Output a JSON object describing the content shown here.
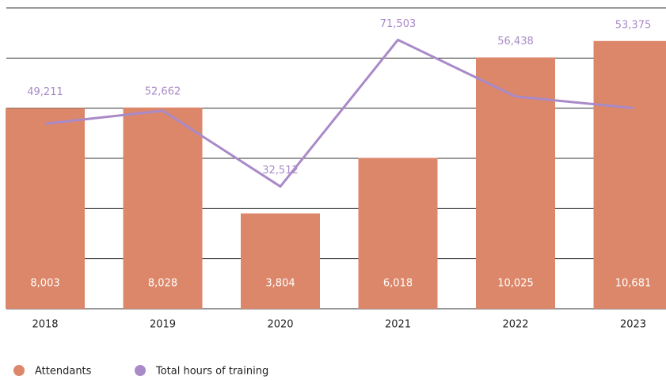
{
  "chart_data": {
    "type": "bar_line",
    "categories": [
      "2018",
      "2019",
      "2020",
      "2021",
      "2022",
      "2023"
    ],
    "series": [
      {
        "name": "Attendants",
        "type": "bar",
        "color": "#dc876a",
        "values": [
          8003,
          8028,
          3804,
          6018,
          10025,
          10681
        ],
        "value_labels": [
          "8,003",
          "8,028",
          "3,804",
          "6,018",
          "10,025",
          "10,681"
        ]
      },
      {
        "name": "Total hours of training",
        "type": "line",
        "axis": "y2",
        "color": "#a98ac8",
        "values": [
          49211,
          52662,
          32512,
          71503,
          56438,
          53375
        ],
        "value_labels": [
          "49,211",
          "52,662",
          "32,512",
          "71,503",
          "56,438",
          "53,375"
        ]
      }
    ],
    "ylim": [
      0,
      12000
    ],
    "yticks": [
      0,
      2000,
      4000,
      6000,
      8000,
      10000,
      12000
    ],
    "y2lim": [
      0,
      80000
    ],
    "grid": true,
    "legend": "bottom-left"
  }
}
